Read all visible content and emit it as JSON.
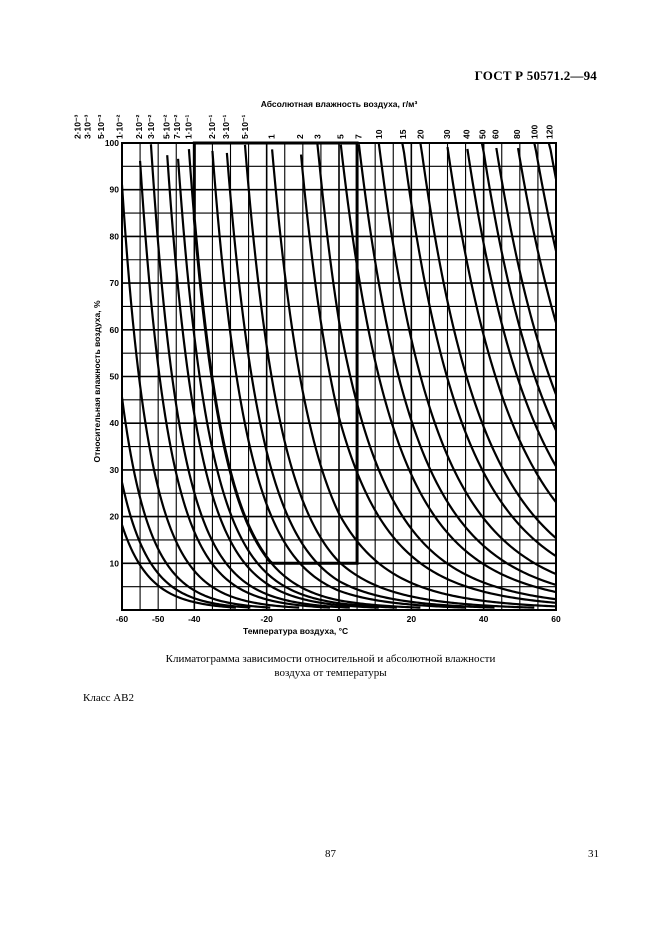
{
  "header": {
    "standard": "ГОСТ Р 50571.2—94"
  },
  "caption": {
    "line1": "Климатограмма зависимости относительной и абсолютной влажности",
    "line2": "воздуха от температуры"
  },
  "class_label": "Класс АВ2",
  "footer": {
    "page_center": "87",
    "page_right": "31"
  },
  "chart_data": {
    "type": "line",
    "title": "",
    "xlabel": "Температура воздуха, °С",
    "ylabel": "Относительная влажность воздуха, %",
    "top_axis_label": "Абсолютная влажность воздуха, г/м³",
    "xlim": [
      -60,
      60
    ],
    "ylim": [
      0,
      100
    ],
    "x_ticks": [
      "-60",
      "-50",
      "-40",
      "-20",
      "0",
      "20",
      "40",
      "60"
    ],
    "y_ticks": [
      "10",
      "20",
      "30",
      "40",
      "50",
      "60",
      "70",
      "80",
      "90",
      "100"
    ],
    "grid": true,
    "curves_note": "isolines of constant absolute humidity",
    "absolute_humidity_labels": [
      "2·10⁻³",
      "3·10⁻³",
      "5·10⁻³",
      "1·10⁻²",
      "2·10⁻²",
      "3·10⁻²",
      "5·10⁻²",
      "7·10⁻²",
      "1·10⁻¹",
      "2·10⁻¹",
      "3·10⁻¹",
      "5·10⁻¹",
      "1",
      "2",
      "3",
      "5",
      "7",
      "10",
      "15",
      "20",
      "30",
      "40",
      "50",
      "60",
      "80",
      "100",
      "120"
    ],
    "absolute_humidity_values": [
      0.002,
      0.003,
      0.005,
      0.01,
      0.02,
      0.03,
      0.05,
      0.07,
      0.1,
      0.2,
      0.3,
      0.5,
      1,
      2,
      3,
      5,
      7,
      10,
      15,
      20,
      30,
      40,
      50,
      60,
      80,
      100,
      120
    ],
    "highlight_region": {
      "label": "Класс АВ2",
      "t_min": -40,
      "t_max": 5,
      "rh_min": 10,
      "rh_max": 100,
      "abs_min": 0.1,
      "abs_max": 7
    }
  }
}
